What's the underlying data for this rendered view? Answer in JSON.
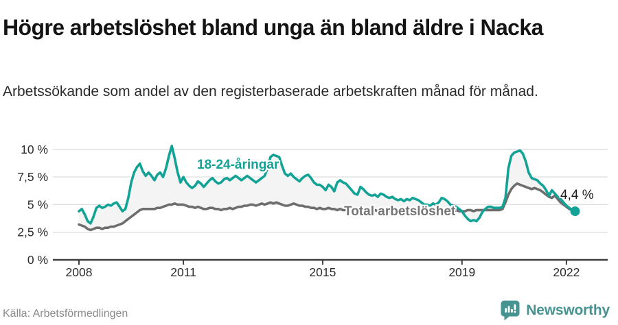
{
  "header": {
    "title": "Högre arbetslöshet bland unga än bland äldre i Nacka",
    "subtitle": "Arbetssökande som andel av den registerbaserade arbetskraften månad för månad."
  },
  "annotations": {
    "young_label": "18-24-åringar",
    "total_label": "Total arbetslöshet",
    "last_value": "4,4 %"
  },
  "footer": {
    "source": "Källa: Arbetsförmedlingen",
    "brand": "Newsworthy"
  },
  "colors": {
    "young": "#12a396",
    "total": "#6e6e6e",
    "band": "#f4f4f4",
    "grid": "#dddddd",
    "axis": "#3f3f3f",
    "tick_text": "#2b2b2b",
    "brand": "#459492"
  },
  "chart_data": {
    "type": "line",
    "title": "Högre arbetslöshet bland unga än bland äldre i Nacka",
    "subtitle": "Arbetssökande som andel av den registerbaserade arbetskraften månad för månad.",
    "x_range": [
      "2008-01",
      "2022-04"
    ],
    "x_unit": "month",
    "ylim": [
      0,
      10.5
    ],
    "grid": true,
    "y_ticks": [
      {
        "value": 0,
        "label": "0 %"
      },
      {
        "value": 2.5,
        "label": "2,5 %"
      },
      {
        "value": 5,
        "label": "5 %"
      },
      {
        "value": 7.5,
        "label": "7,5 %"
      },
      {
        "value": 10,
        "label": "10 %"
      }
    ],
    "x_ticks": [
      {
        "year": 2008,
        "label": "2008"
      },
      {
        "year": 2011,
        "label": "2011"
      },
      {
        "year": 2015,
        "label": "2015"
      },
      {
        "year": 2019,
        "label": "2019"
      },
      {
        "year": 2022,
        "label": "2022"
      }
    ],
    "series": [
      {
        "name": "18-24-åringar",
        "color": "#12a396",
        "end_dot": true,
        "end_value_label": "4,4 %",
        "values": [
          4.4,
          4.6,
          4.1,
          3.5,
          3.3,
          3.9,
          4.7,
          4.9,
          4.7,
          4.8,
          5.0,
          4.9,
          5.1,
          5.2,
          4.8,
          4.4,
          4.6,
          5.6,
          7.0,
          7.9,
          8.4,
          8.7,
          8.0,
          7.6,
          7.9,
          7.6,
          7.2,
          7.7,
          7.9,
          7.5,
          8.3,
          9.4,
          10.3,
          9.2,
          7.9,
          7.0,
          7.5,
          7.0,
          6.7,
          6.5,
          6.7,
          7.1,
          6.9,
          6.6,
          6.9,
          7.2,
          7.4,
          7.1,
          6.9,
          7.0,
          7.3,
          7.4,
          7.2,
          7.4,
          7.6,
          7.4,
          7.2,
          7.4,
          7.6,
          7.4,
          7.2,
          7.0,
          7.2,
          7.4,
          7.6,
          8.3,
          9.3,
          9.5,
          9.4,
          9.3,
          8.5,
          7.8,
          7.6,
          7.8,
          7.5,
          7.3,
          7.1,
          7.4,
          7.6,
          7.7,
          7.4,
          7.0,
          6.8,
          6.8,
          6.6,
          6.3,
          6.8,
          6.6,
          6.2,
          7.0,
          7.2,
          7.0,
          6.9,
          6.6,
          6.3,
          6.0,
          5.9,
          6.6,
          6.4,
          6.1,
          5.9,
          5.8,
          5.9,
          5.7,
          6.0,
          5.9,
          5.7,
          5.6,
          5.7,
          5.5,
          5.4,
          5.5,
          5.3,
          5.5,
          5.4,
          5.6,
          5.5,
          5.4,
          5.2,
          5.0,
          5.0,
          4.9,
          5.1,
          5.0,
          5.2,
          5.6,
          5.5,
          5.3,
          5.0,
          4.9,
          4.8,
          4.6,
          4.4,
          4.0,
          3.7,
          3.5,
          3.6,
          3.5,
          3.8,
          4.3,
          4.6,
          4.8,
          4.8,
          4.7,
          4.7,
          4.7,
          4.8,
          5.6,
          8.3,
          9.4,
          9.7,
          9.8,
          9.9,
          9.6,
          8.9,
          7.9,
          7.4,
          7.3,
          7.2,
          6.9,
          6.7,
          6.3,
          5.8,
          6.3,
          6.0,
          5.7,
          5.5,
          5.2,
          4.9,
          4.7,
          4.5,
          4.4
        ]
      },
      {
        "name": "Total arbetslöshet",
        "color": "#6e6e6e",
        "end_dot": false,
        "values": [
          3.2,
          3.1,
          3.0,
          2.8,
          2.7,
          2.8,
          2.9,
          2.9,
          2.8,
          2.9,
          2.9,
          3.0,
          3.0,
          3.1,
          3.2,
          3.3,
          3.5,
          3.7,
          3.9,
          4.1,
          4.3,
          4.5,
          4.6,
          4.6,
          4.6,
          4.6,
          4.6,
          4.7,
          4.7,
          4.8,
          4.9,
          5.0,
          5.0,
          5.1,
          5.0,
          5.0,
          5.0,
          4.9,
          4.8,
          4.8,
          4.7,
          4.8,
          4.7,
          4.6,
          4.6,
          4.7,
          4.7,
          4.6,
          4.6,
          4.5,
          4.6,
          4.6,
          4.7,
          4.6,
          4.7,
          4.8,
          4.8,
          4.9,
          4.9,
          5.0,
          5.0,
          4.9,
          5.0,
          5.1,
          5.0,
          5.1,
          5.2,
          5.1,
          5.2,
          5.1,
          5.0,
          4.9,
          4.9,
          5.0,
          5.1,
          5.0,
          4.9,
          4.9,
          4.8,
          4.8,
          4.7,
          4.7,
          4.6,
          4.7,
          4.6,
          4.6,
          4.7,
          4.6,
          4.6,
          4.5,
          4.6,
          4.5,
          4.5,
          4.5,
          4.4,
          4.5,
          4.5,
          4.4,
          4.5,
          4.4,
          4.5,
          4.4,
          4.5,
          4.4,
          4.4,
          4.5,
          4.4,
          4.4,
          4.4,
          4.5,
          4.4,
          4.4,
          4.5,
          4.4,
          4.4,
          4.4,
          4.5,
          4.4,
          4.4,
          4.4,
          4.4,
          4.4,
          4.5,
          4.4,
          4.4,
          4.5,
          4.4,
          4.4,
          4.4,
          4.4,
          4.5,
          4.4,
          4.4,
          4.4,
          4.5,
          4.5,
          4.4,
          4.5,
          4.5,
          4.5,
          4.5,
          4.5,
          4.5,
          4.5,
          4.5,
          4.5,
          4.6,
          5.2,
          5.9,
          6.4,
          6.7,
          6.9,
          6.8,
          6.7,
          6.6,
          6.5,
          6.4,
          6.5,
          6.4,
          6.3,
          6.1,
          5.9,
          5.7,
          5.6,
          5.8,
          5.5,
          5.2,
          5.0,
          4.8,
          4.6,
          4.5,
          4.5
        ]
      }
    ]
  }
}
